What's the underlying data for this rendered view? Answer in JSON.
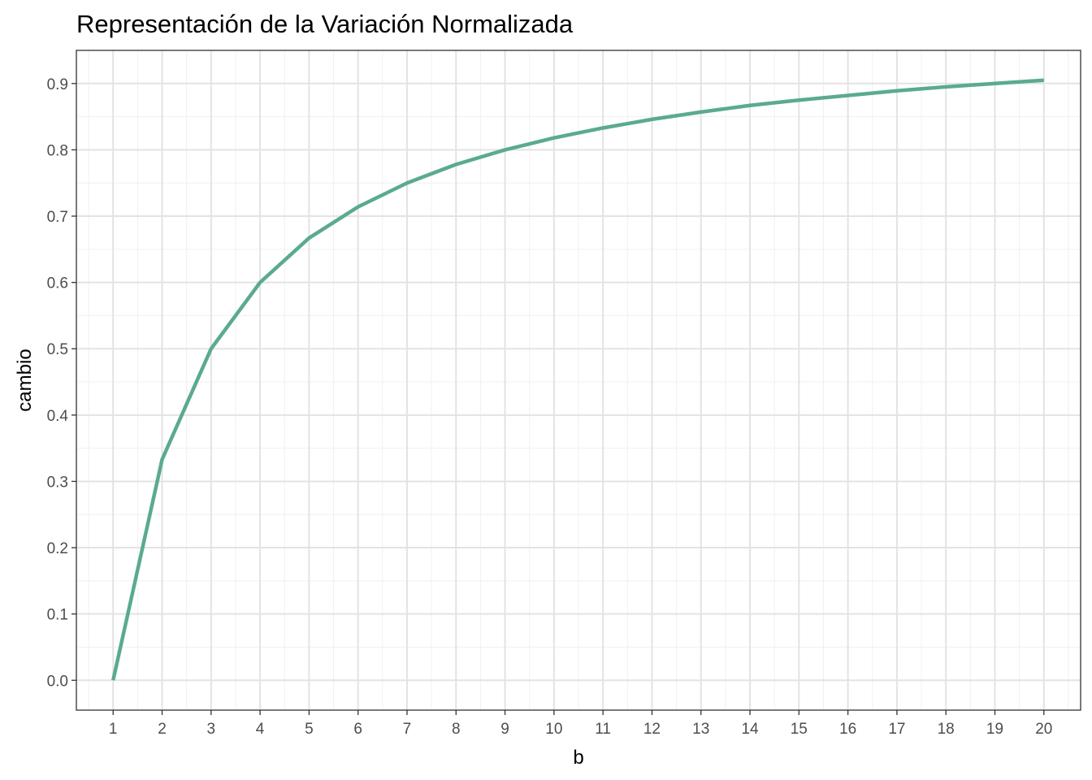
{
  "chart_data": {
    "type": "line",
    "title": "Representación de la Variación Normalizada",
    "xlabel": "b",
    "ylabel": "cambio",
    "xlim": [
      0.25,
      20.75
    ],
    "ylim": [
      -0.045,
      0.95
    ],
    "grid": true,
    "legend": "none",
    "x_ticks": [
      "1",
      "2",
      "3",
      "4",
      "5",
      "6",
      "7",
      "8",
      "9",
      "10",
      "11",
      "12",
      "13",
      "14",
      "15",
      "16",
      "17",
      "18",
      "19",
      "20"
    ],
    "y_ticks": [
      "0.0",
      "0.1",
      "0.2",
      "0.3",
      "0.4",
      "0.5",
      "0.6",
      "0.7",
      "0.8",
      "0.9"
    ],
    "series": [
      {
        "color": "#5aaa91",
        "x": [
          1,
          2,
          3,
          4,
          5,
          6,
          7,
          8,
          9,
          10,
          11,
          12,
          13,
          14,
          15,
          16,
          17,
          18,
          19,
          20
        ],
        "y": [
          0.0,
          0.333,
          0.5,
          0.6,
          0.667,
          0.714,
          0.75,
          0.778,
          0.8,
          0.818,
          0.833,
          0.846,
          0.857,
          0.867,
          0.875,
          0.882,
          0.889,
          0.895,
          0.9,
          0.905
        ]
      }
    ]
  }
}
